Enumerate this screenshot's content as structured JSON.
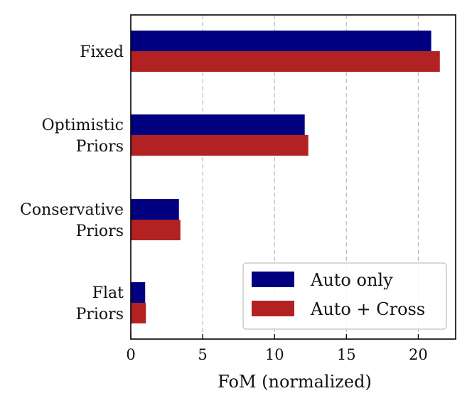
{
  "chart_data": {
    "type": "bar",
    "orientation": "horizontal",
    "categories": [
      [
        "Fixed"
      ],
      [
        "Optimistic",
        "Priors"
      ],
      [
        "Conservative",
        "Priors"
      ],
      [
        "Flat",
        "Priors"
      ]
    ],
    "series": [
      {
        "name": "Auto only",
        "color": "#000080",
        "values": [
          20.9,
          12.1,
          3.35,
          1.0
        ]
      },
      {
        "name": "Auto + Cross",
        "color": "#b22222",
        "values": [
          21.5,
          12.35,
          3.45,
          1.05
        ]
      }
    ],
    "xlabel": "FoM (normalized)",
    "ylabel": "",
    "xlim": [
      0,
      22.6
    ],
    "xticks": [
      0,
      5,
      10,
      15,
      20
    ],
    "grid": "x-dashed",
    "legend_position": "lower-right"
  }
}
